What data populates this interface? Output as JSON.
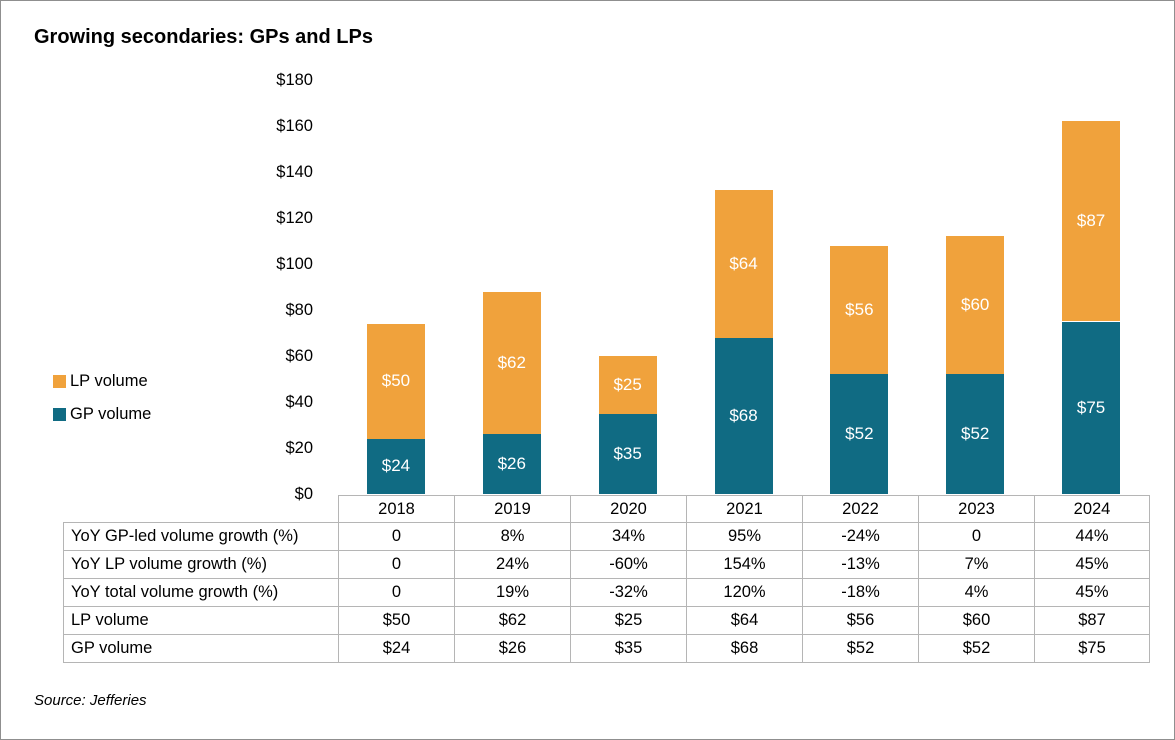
{
  "title": "Growing secondaries: GPs and LPs",
  "source": "Source: Jefferies",
  "colors": {
    "lp_orange": "#F0A23C",
    "gp_teal": "#106B83",
    "bar_label_text": "#FFFFFF",
    "table_border": "#B5B5B5"
  },
  "legend": {
    "items": [
      {
        "label": "LP volume",
        "color": "#F0A23C"
      },
      {
        "label": "GP volume",
        "color": "#106B83"
      }
    ]
  },
  "chart_data": {
    "type": "bar",
    "stacked": true,
    "title": "Growing secondaries: GPs and LPs",
    "categories": [
      "2018",
      "2019",
      "2020",
      "2021",
      "2022",
      "2023",
      "2024"
    ],
    "series": [
      {
        "name": "GP volume",
        "color": "#106B83",
        "values": [
          24,
          26,
          35,
          68,
          52,
          52,
          75
        ],
        "labels": [
          "$24",
          "$26",
          "$35",
          "$68",
          "$52",
          "$52",
          "$75"
        ]
      },
      {
        "name": "LP volume",
        "color": "#F0A23C",
        "values": [
          50,
          62,
          25,
          64,
          56,
          60,
          87
        ],
        "labels": [
          "$50",
          "$62",
          "$25",
          "$64",
          "$56",
          "$60",
          "$87"
        ]
      }
    ],
    "xlabel": "",
    "ylabel": "",
    "ylim": [
      0,
      180
    ],
    "ytick_step": 20,
    "ytick_labels": [
      "$0",
      "$20",
      "$40",
      "$60",
      "$80",
      "$100",
      "$120",
      "$140",
      "$160",
      "$180"
    ],
    "grid": false,
    "legend_position": "middle-left",
    "value_labels": "inside-white"
  },
  "table": {
    "year_header": [
      "2018",
      "2019",
      "2020",
      "2021",
      "2022",
      "2023",
      "2024"
    ],
    "rows": [
      {
        "label": "YoY GP-led volume growth (%)",
        "values": [
          "0",
          "8%",
          "34%",
          "95%",
          "-24%",
          "0",
          "44%"
        ]
      },
      {
        "label": "YoY LP volume growth (%)",
        "values": [
          "0",
          "24%",
          "-60%",
          "154%",
          "-13%",
          "7%",
          "45%"
        ]
      },
      {
        "label": "YoY total volume growth (%)",
        "values": [
          "0",
          "19%",
          "-32%",
          "120%",
          "-18%",
          "4%",
          "45%"
        ]
      },
      {
        "label": "LP volume",
        "values": [
          "$50",
          "$62",
          "$25",
          "$64",
          "$56",
          "$60",
          "$87"
        ]
      },
      {
        "label": "GP volume",
        "values": [
          "$24",
          "$26",
          "$35",
          "$68",
          "$52",
          "$52",
          "$75"
        ]
      }
    ]
  }
}
